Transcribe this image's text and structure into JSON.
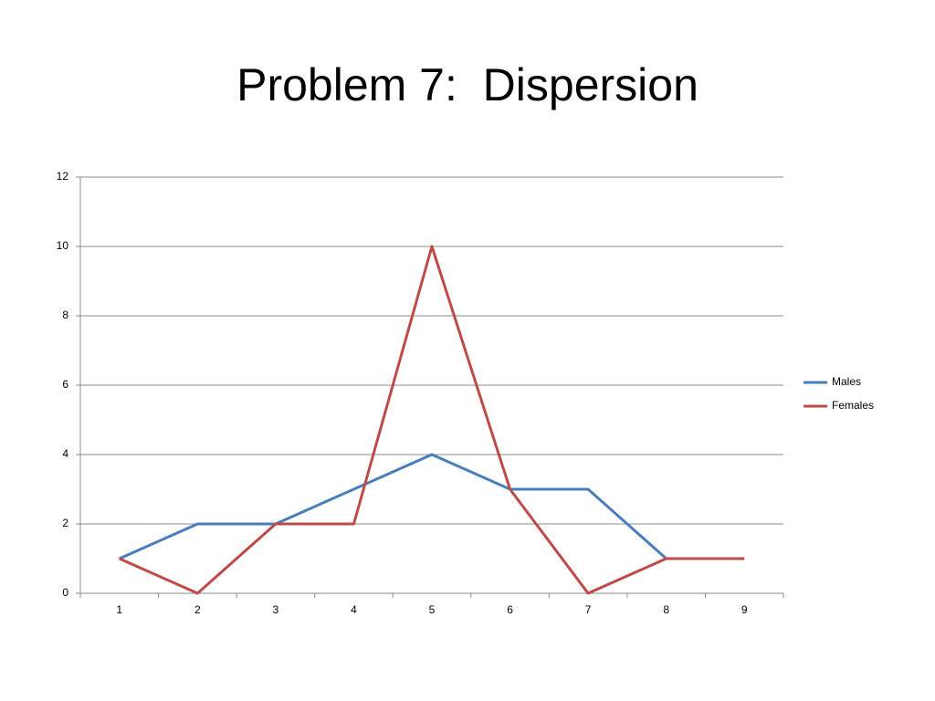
{
  "chart_data": {
    "type": "line",
    "title": "Problem 7:  Dispersion",
    "categories": [
      "1",
      "2",
      "3",
      "4",
      "5",
      "6",
      "7",
      "8",
      "9"
    ],
    "series": [
      {
        "name": "Males",
        "color": "#4a7ebb",
        "values": [
          1,
          2,
          2,
          3,
          4,
          3,
          3,
          1,
          1
        ]
      },
      {
        "name": "Females",
        "color": "#be4b48",
        "values": [
          1,
          0,
          2,
          2,
          10,
          3,
          0,
          1,
          1
        ]
      }
    ],
    "ylim": [
      0,
      12
    ],
    "yticks": [
      0,
      2,
      4,
      6,
      8,
      10,
      12
    ],
    "grid": true,
    "legend": "right"
  }
}
